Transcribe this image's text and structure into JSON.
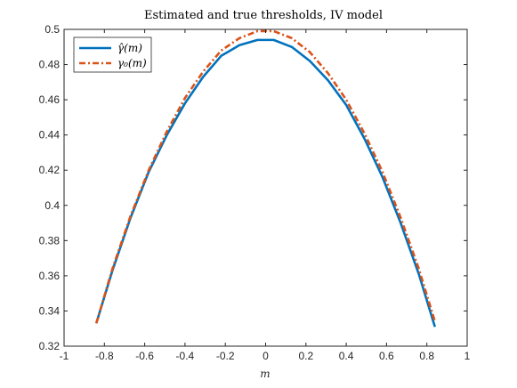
{
  "chart_data": {
    "type": "line",
    "title": "Estimated and true thresholds, IV model",
    "xlabel": "m",
    "ylabel": "",
    "xlim": [
      -1,
      1
    ],
    "ylim": [
      0.32,
      0.5
    ],
    "xticks": [
      "-1",
      "-0.8",
      "-0.6",
      "-0.4",
      "-0.2",
      "0",
      "0.2",
      "0.4",
      "0.6",
      "0.8",
      "1"
    ],
    "yticks": [
      "0.32",
      "0.34",
      "0.36",
      "0.38",
      "0.4",
      "0.42",
      "0.44",
      "0.46",
      "0.48",
      "0.5"
    ],
    "grid": false,
    "legend_position": "top-left",
    "x": [
      -0.84,
      -0.76,
      -0.67,
      -0.58,
      -0.49,
      -0.4,
      -0.31,
      -0.22,
      -0.13,
      -0.04,
      0.04,
      0.13,
      0.22,
      0.31,
      0.4,
      0.49,
      0.58,
      0.67,
      0.76,
      0.84
    ],
    "series": [
      {
        "name": "γ̂(m)",
        "color": "#0072BD",
        "style": "solid",
        "values": [
          0.333,
          0.363,
          0.393,
          0.419,
          0.44,
          0.458,
          0.473,
          0.485,
          0.491,
          0.494,
          0.494,
          0.49,
          0.482,
          0.471,
          0.457,
          0.438,
          0.416,
          0.39,
          0.361,
          0.331
        ]
      },
      {
        "name": "γ₀(m)",
        "color": "#D95319",
        "style": "dashdot",
        "values": [
          0.333,
          0.364,
          0.394,
          0.42,
          0.442,
          0.461,
          0.476,
          0.488,
          0.495,
          0.499,
          0.499,
          0.495,
          0.487,
          0.475,
          0.46,
          0.441,
          0.419,
          0.393,
          0.364,
          0.334
        ]
      }
    ]
  }
}
